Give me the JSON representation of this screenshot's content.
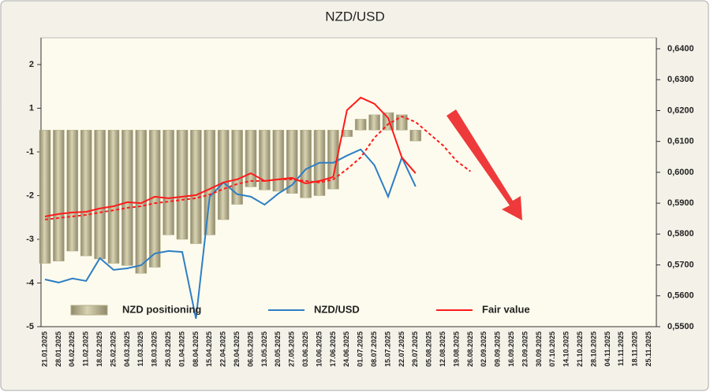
{
  "chart_data": {
    "type": "combo",
    "title": "NZD/USD",
    "categories": [
      "21.01.2025",
      "28.01.2025",
      "04.02.2025",
      "11.02.2025",
      "18.02.2025",
      "25.02.2025",
      "04.03.2025",
      "11.03.2025",
      "18.03.2025",
      "25.03.2025",
      "01.04.2025",
      "08.04.2025",
      "15.04.2025",
      "22.04.2025",
      "29.04.2025",
      "06.05.2025",
      "13.05.2025",
      "20.05.2025",
      "27.05.2025",
      "03.06.2025",
      "10.06.2025",
      "17.06.2025",
      "24.06.2025",
      "01.07.2025",
      "08.07.2025",
      "15.07.2025",
      "22.07.2025",
      "29.07.2025",
      "05.08.2025",
      "12.08.2025",
      "19.08.2025",
      "26.08.2025",
      "02.09.2025",
      "09.09.2025",
      "16.09.2025",
      "23.09.2025",
      "30.09.2025",
      "07.10.2025",
      "14.10.2025",
      "21.10.2025",
      "28.10.2025",
      "04.11.2025",
      "11.11.2025",
      "18.11.2025",
      "25.11.2025"
    ],
    "series": [
      {
        "name": "NZD positioning",
        "type": "bar",
        "axis": "y",
        "color": "#b3ad86",
        "values": [
          -3.55,
          -3.5,
          -3.27,
          -3.38,
          -3.45,
          -3.55,
          -3.6,
          -3.78,
          -3.64,
          -2.9,
          -3.0,
          -3.1,
          -2.9,
          -2.55,
          -2.2,
          -1.8,
          -1.87,
          -1.9,
          -1.95,
          -2.05,
          -2.0,
          -1.85,
          -0.3,
          0.5,
          0.7,
          0.8,
          0.7,
          -0.5,
          null,
          null,
          null,
          null,
          null,
          null,
          null,
          null,
          null,
          null,
          null,
          null,
          null,
          null,
          null,
          null,
          null
        ]
      },
      {
        "name": "NZD/USD",
        "type": "line",
        "axis": "y2",
        "color": "#2e7ec4",
        "values": [
          0.5653,
          0.5643,
          0.5656,
          0.5648,
          0.5722,
          0.5684,
          0.5689,
          0.5699,
          0.5737,
          0.5745,
          0.5742,
          0.5526,
          0.5921,
          0.5967,
          0.5929,
          0.5921,
          0.5895,
          0.5931,
          0.5959,
          0.601,
          0.6031,
          0.6031,
          0.6054,
          0.6074,
          0.6023,
          0.5921,
          0.6048,
          0.5954,
          null,
          null,
          null,
          null,
          null,
          null,
          null,
          null,
          null,
          null,
          null,
          null,
          null,
          null,
          null,
          null,
          null
        ]
      },
      {
        "name": "Fair value",
        "type": "line",
        "axis": "y2",
        "color": "#ff1a1a",
        "values": [
          0.5857,
          0.5865,
          0.587,
          0.5872,
          0.5883,
          0.589,
          0.5903,
          0.59,
          0.5921,
          0.5916,
          0.5921,
          0.5926,
          0.5946,
          0.5967,
          0.5977,
          0.5997,
          0.5972,
          0.5977,
          0.5982,
          0.5964,
          0.5972,
          0.5985,
          0.6201,
          0.6242,
          0.6222,
          0.6176,
          0.6048,
          0.5997,
          null,
          null,
          null,
          null,
          null,
          null,
          null,
          null,
          null,
          null,
          null,
          null,
          null,
          null,
          null,
          null,
          null
        ]
      },
      {
        "type": "line",
        "dashed": true,
        "axis": "y2",
        "color": "#ff1a1a",
        "values": [
          0.5847,
          0.5852,
          0.5857,
          0.5862,
          0.587,
          0.5877,
          0.5885,
          0.589,
          0.59,
          0.5905,
          0.5911,
          0.5916,
          0.5928,
          0.5946,
          0.5962,
          0.5972,
          0.5972,
          0.5977,
          0.5977,
          0.5972,
          0.5967,
          0.5977,
          0.601,
          0.6048,
          0.6112,
          0.6156,
          0.6181,
          0.6163,
          0.6125,
          0.6087,
          0.6036,
          0.6003,
          null,
          null,
          null,
          null,
          null,
          null,
          null,
          null,
          null,
          null,
          null,
          null,
          null
        ]
      }
    ],
    "ylim": [
      -5,
      2
    ],
    "yticks": [
      2,
      1,
      -1,
      -2,
      -3,
      -4,
      -5
    ],
    "y2lim": [
      0.55,
      0.64
    ],
    "y2ticks": [
      {
        "value": 0.55,
        "label": "0,5500"
      },
      {
        "value": 0.56,
        "label": "0,5600"
      },
      {
        "value": 0.57,
        "label": "0,5700"
      },
      {
        "value": 0.58,
        "label": "0,5800"
      },
      {
        "value": 0.59,
        "label": "0,5900"
      },
      {
        "value": 0.6,
        "label": "0,6000"
      },
      {
        "value": 0.61,
        "label": "0,6100"
      },
      {
        "value": 0.62,
        "label": "0,6200"
      },
      {
        "value": 0.63,
        "label": "0,6300"
      },
      {
        "value": 0.64,
        "label": "0,6400"
      }
    ]
  }
}
